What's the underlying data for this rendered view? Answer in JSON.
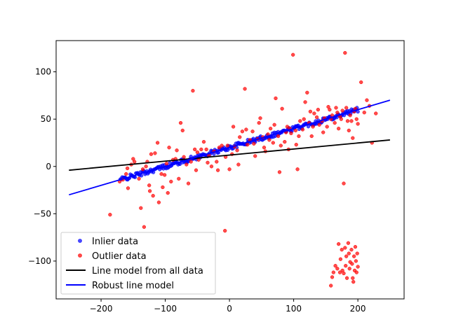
{
  "chart_data": {
    "type": "scatter",
    "title": "",
    "xlabel": "",
    "ylabel": "",
    "xlim": [
      -270,
      272
    ],
    "ylim": [
      -140,
      133
    ],
    "xticks": [
      -200,
      -100,
      0,
      100,
      200
    ],
    "yticks": [
      -100,
      -50,
      0,
      50,
      100
    ],
    "xtick_labels": [
      "−200",
      "−100",
      "0",
      "100",
      "200"
    ],
    "ytick_labels": [
      "−100",
      "−50",
      "0",
      "50",
      "100"
    ],
    "grid": false,
    "legend_position": "lower-left",
    "inliers": {
      "name": "Inlier data",
      "color": "#0000ff",
      "x_range": [
        -170,
        200
      ],
      "slope": 0.2,
      "intercept": 20,
      "jitter": 2.5,
      "count": 260
    },
    "outliers": {
      "name": "Outlier data",
      "color": "#ff0000",
      "points": [
        [
          -186,
          -51
        ],
        [
          -171,
          -16
        ],
        [
          -158,
          -23
        ],
        [
          -159,
          -2
        ],
        [
          -153,
          2
        ],
        [
          -148,
          5
        ],
        [
          -141,
          -13
        ],
        [
          -135,
          -3
        ],
        [
          -130,
          0
        ],
        [
          -128,
          5
        ],
        [
          -125,
          -20
        ],
        [
          -124,
          -26
        ],
        [
          -122,
          13
        ],
        [
          -116,
          14
        ],
        [
          -112,
          25
        ],
        [
          -110,
          -38
        ],
        [
          -106,
          -8
        ],
        [
          -104,
          -22
        ],
        [
          -101,
          -9
        ],
        [
          -98,
          3
        ],
        [
          -96,
          -28
        ],
        [
          -91,
          -16
        ],
        [
          -88,
          7
        ],
        [
          -84,
          8
        ],
        [
          -82,
          17
        ],
        [
          -79,
          -13
        ],
        [
          -76,
          46
        ],
        [
          -71,
          10
        ],
        [
          -67,
          2
        ],
        [
          -64,
          -18
        ],
        [
          -60,
          5
        ],
        [
          -57,
          80
        ],
        [
          -54,
          18
        ],
        [
          -50,
          15
        ],
        [
          -48,
          7
        ],
        [
          -44,
          18
        ],
        [
          -40,
          26
        ],
        [
          -36,
          18
        ],
        [
          -32,
          12
        ],
        [
          -28,
          0
        ],
        [
          -24,
          16
        ],
        [
          -20,
          5
        ],
        [
          -16,
          20
        ],
        [
          -12,
          22
        ],
        [
          -7,
          -68
        ],
        [
          -3,
          22
        ],
        [
          0,
          -3
        ],
        [
          4,
          13
        ],
        [
          8,
          21
        ],
        [
          12,
          17
        ],
        [
          16,
          31
        ],
        [
          20,
          37
        ],
        [
          24,
          82
        ],
        [
          28,
          23
        ],
        [
          32,
          28
        ],
        [
          36,
          37
        ],
        [
          40,
          11
        ],
        [
          44,
          29
        ],
        [
          48,
          51
        ],
        [
          52,
          31
        ],
        [
          56,
          16
        ],
        [
          60,
          34
        ],
        [
          64,
          40
        ],
        [
          68,
          25
        ],
        [
          72,
          72
        ],
        [
          76,
          32
        ],
        [
          78,
          -6
        ],
        [
          82,
          61
        ],
        [
          86,
          26
        ],
        [
          90,
          42
        ],
        [
          92,
          18
        ],
        [
          96,
          35
        ],
        [
          99,
          118
        ],
        [
          103,
          38
        ],
        [
          104,
          23
        ],
        [
          106,
          -3
        ],
        [
          110,
          48
        ],
        [
          114,
          39
        ],
        [
          118,
          68
        ],
        [
          121,
          78
        ],
        [
          124,
          46
        ],
        [
          128,
          32
        ],
        [
          132,
          56
        ],
        [
          136,
          52
        ],
        [
          140,
          44
        ],
        [
          144,
          48
        ],
        [
          148,
          51
        ],
        [
          152,
          42
        ],
        [
          156,
          60
        ],
        [
          160,
          54
        ],
        [
          164,
          46
        ],
        [
          168,
          57
        ],
        [
          172,
          53
        ],
        [
          176,
          59
        ],
        [
          178,
          -18
        ],
        [
          180,
          120
        ],
        [
          184,
          48
        ],
        [
          188,
          54
        ],
        [
          192,
          30
        ],
        [
          196,
          61
        ],
        [
          200,
          45
        ],
        [
          205,
          89
        ],
        [
          210,
          57
        ],
        [
          214,
          70
        ],
        [
          218,
          64
        ],
        [
          222,
          25
        ],
        [
          228,
          56
        ],
        [
          -133,
          -64
        ],
        [
          -138,
          -44
        ],
        [
          -150,
          8
        ],
        [
          -161,
          -8
        ],
        [
          -166,
          -14
        ],
        [
          -119,
          -31
        ],
        [
          -94,
          20
        ],
        [
          -73,
          38
        ],
        [
          -52,
          -4
        ],
        [
          -34,
          4
        ],
        [
          -18,
          -4
        ],
        [
          -6,
          10
        ],
        [
          6,
          42
        ],
        [
          14,
          2
        ],
        [
          26,
          39
        ],
        [
          38,
          24
        ],
        [
          46,
          46
        ],
        [
          54,
          20
        ],
        [
          62,
          28
        ],
        [
          70,
          44
        ],
        [
          80,
          22
        ],
        [
          88,
          36
        ],
        [
          94,
          40
        ],
        [
          108,
          32
        ],
        [
          116,
          50
        ],
        [
          126,
          58
        ],
        [
          130,
          42
        ],
        [
          138,
          60
        ],
        [
          146,
          36
        ],
        [
          154,
          63
        ],
        [
          158,
          50
        ],
        [
          166,
          62
        ],
        [
          170,
          40
        ],
        [
          174,
          50
        ],
        [
          182,
          62
        ],
        [
          186,
          38
        ],
        [
          190,
          48
        ],
        [
          194,
          58
        ],
        [
          198,
          50
        ],
        [
          158,
          -126
        ],
        [
          160,
          -117
        ],
        [
          162,
          -112
        ],
        [
          165,
          -105
        ],
        [
          168,
          -108
        ],
        [
          170,
          -82
        ],
        [
          172,
          -112
        ],
        [
          173,
          -98
        ],
        [
          175,
          -88
        ],
        [
          176,
          -110
        ],
        [
          178,
          -113
        ],
        [
          180,
          -86
        ],
        [
          181,
          -105
        ],
        [
          182,
          -95
        ],
        [
          183,
          -118
        ],
        [
          185,
          -81
        ],
        [
          186,
          -92
        ],
        [
          187,
          -108
        ],
        [
          188,
          -101
        ],
        [
          190,
          -88
        ],
        [
          191,
          -103
        ],
        [
          192,
          -118
        ],
        [
          193,
          -122
        ],
        [
          194,
          -95
        ],
        [
          195,
          -110
        ],
        [
          196,
          -85
        ],
        [
          197,
          -100
        ],
        [
          198,
          -112
        ],
        [
          199,
          -92
        ],
        [
          200,
          -106
        ]
      ]
    },
    "lines": [
      {
        "name": "Line model from all data",
        "color": "#000000",
        "x": [
          -250,
          250
        ],
        "y": [
          -4,
          28
        ]
      },
      {
        "name": "Robust line model",
        "color": "#0000ff",
        "x": [
          -250,
          250
        ],
        "y": [
          -30,
          70
        ]
      }
    ]
  }
}
